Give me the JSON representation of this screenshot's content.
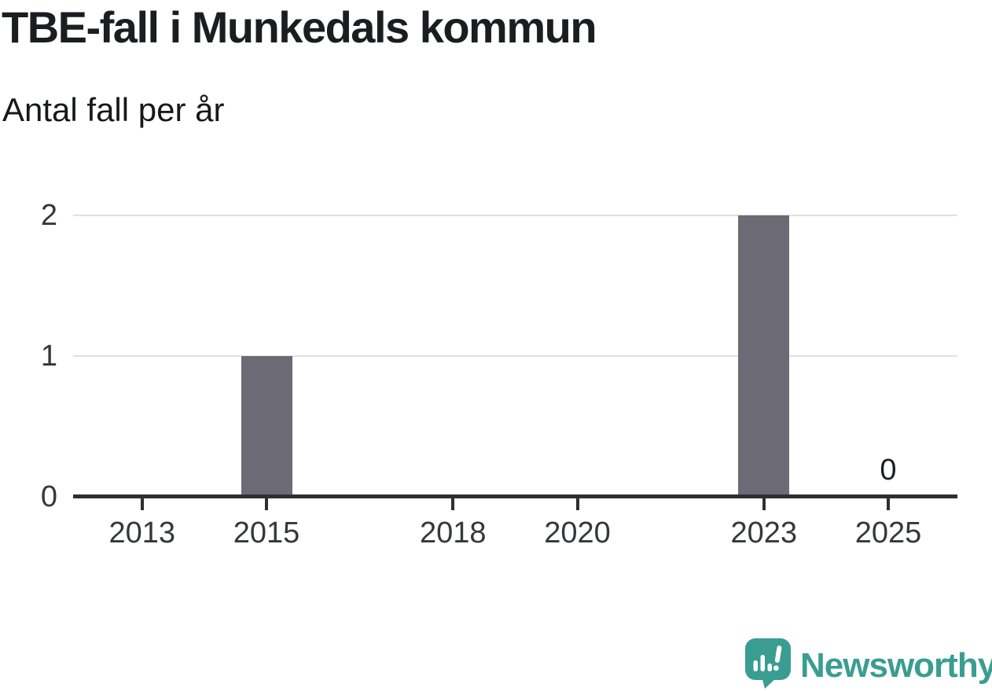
{
  "title": "TBE-fall i Munkedals kommun",
  "subtitle": "Antal fall per år",
  "footer": {
    "brand": "Newsworthy"
  },
  "colors": {
    "bar": "#6c6a75",
    "brand_teal": "#3a9d91",
    "grid": "#e0e0e0",
    "axis": "#2f2f33",
    "title_text": "#1b1d21",
    "tick_label": "#35373c"
  },
  "chart_data": {
    "type": "bar",
    "title": "TBE-fall i Munkedals kommun",
    "subtitle": "Antal fall per år",
    "xlabel": "",
    "ylabel": "",
    "ylim": [
      0,
      2
    ],
    "y_ticks": [
      0,
      1,
      2
    ],
    "x_tick_years": [
      "2013",
      "2015",
      "2018",
      "2020",
      "2023",
      "2025"
    ],
    "grid": "horizontal",
    "legend": "none",
    "bars": [
      {
        "year": 2015,
        "value": 1
      },
      {
        "year": 2023,
        "value": 2
      }
    ],
    "value_labels": [
      {
        "year": 2025,
        "value": 0,
        "text": "0"
      }
    ]
  }
}
